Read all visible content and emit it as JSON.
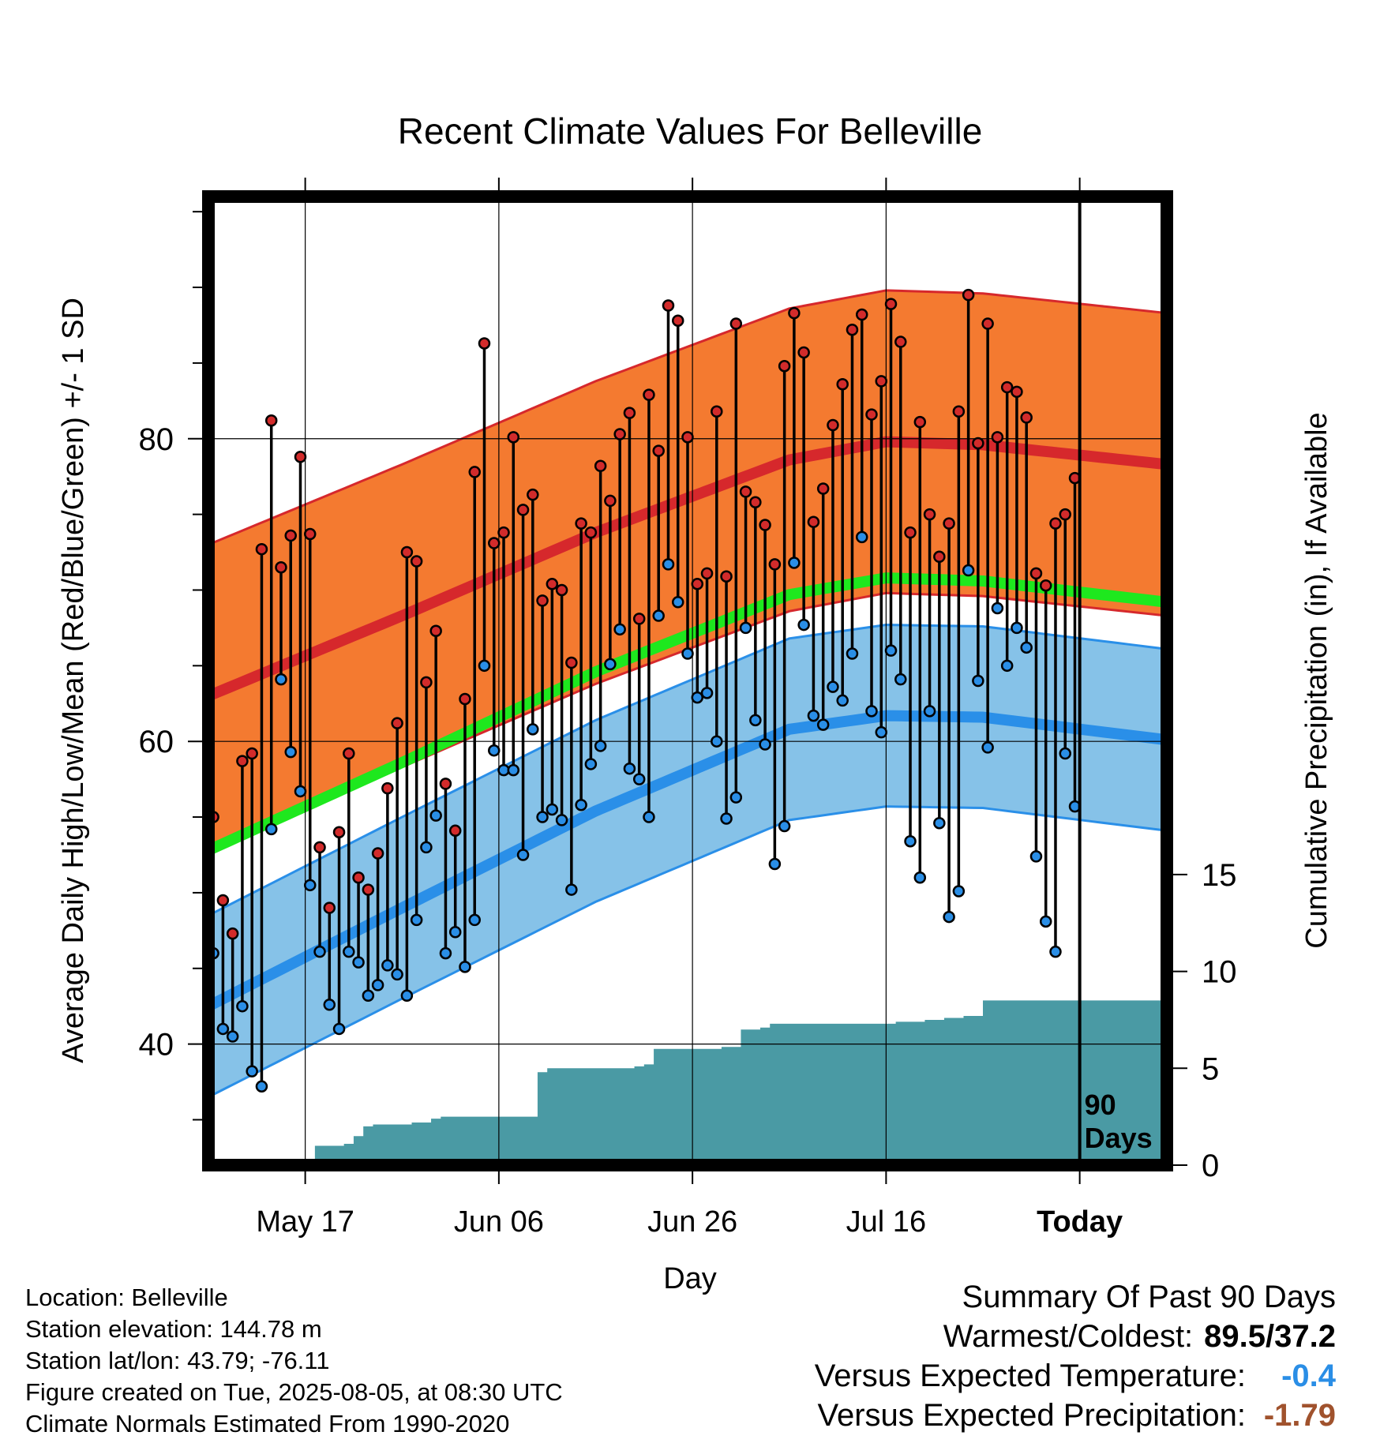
{
  "chart_data": {
    "type": "line",
    "title": "Recent Climate Values For Belleville",
    "xlabel": "Day",
    "ylabel_left": "Average Daily High/Low/Mean (Red/Blue/Green) +/- 1 SD",
    "ylabel_right": "Cumulative Precipitation (in), If Available",
    "x_tick_labels": [
      "May 17",
      "Jun 06",
      "Jun 26",
      "Jul 16",
      "Today"
    ],
    "x_tick_days": [
      10,
      30,
      50,
      70,
      90
    ],
    "x_range_days": [
      0,
      99
    ],
    "y_left_ticks": [
      40,
      60,
      80
    ],
    "y_left_range": [
      32,
      96
    ],
    "y_right_ticks": [
      0,
      5,
      10,
      15
    ],
    "y_right_range": [
      0,
      50
    ],
    "marker_label": "90 Days",
    "grid": true,
    "normals": {
      "high_mean": [
        [
          0,
          63.0
        ],
        [
          20,
          68.3
        ],
        [
          40,
          73.8
        ],
        [
          60,
          78.6
        ],
        [
          70,
          79.8
        ],
        [
          80,
          79.6
        ],
        [
          99,
          78.3
        ]
      ],
      "high_sd": 10,
      "low_mean": [
        [
          0,
          42.5
        ],
        [
          20,
          49.0
        ],
        [
          40,
          55.4
        ],
        [
          60,
          60.8
        ],
        [
          70,
          61.7
        ],
        [
          80,
          61.6
        ],
        [
          99,
          60.1
        ]
      ],
      "low_sd": 6,
      "avg_mean": [
        [
          0,
          52.8
        ],
        [
          20,
          58.6
        ],
        [
          40,
          64.6
        ],
        [
          60,
          69.7
        ],
        [
          70,
          70.8
        ],
        [
          80,
          70.6
        ],
        [
          99,
          69.2
        ]
      ]
    },
    "daily_obs": {
      "high": [
        55.0,
        49.5,
        47.3,
        58.7,
        59.2,
        72.7,
        81.2,
        71.5,
        73.6,
        78.8,
        73.7,
        53.0,
        49.0,
        54.0,
        59.2,
        51.0,
        50.2,
        52.6,
        56.9,
        61.2,
        72.5,
        71.9,
        63.9,
        67.3,
        57.2,
        54.1,
        62.8,
        77.8,
        86.3,
        73.1,
        73.8,
        80.1,
        75.3,
        76.3,
        69.3,
        70.4,
        70.0,
        65.2,
        74.4,
        73.8,
        78.2,
        75.9,
        80.3,
        81.7,
        68.1,
        82.9,
        79.2,
        88.8,
        87.8,
        80.1,
        70.4,
        71.1,
        81.8,
        70.9,
        87.6,
        76.5,
        75.8,
        74.3,
        71.7,
        84.8,
        88.3,
        85.7,
        74.5,
        76.7,
        80.9,
        83.6,
        87.2,
        88.2,
        81.6,
        83.8,
        88.9,
        86.4,
        73.8,
        81.1,
        75.0,
        72.2,
        74.4,
        81.8,
        89.5,
        79.7,
        87.6,
        80.1,
        83.4,
        83.1,
        81.4,
        71.1,
        70.3,
        74.4,
        75.0,
        77.4
      ],
      "low": [
        46.0,
        41.0,
        40.5,
        42.5,
        38.2,
        37.2,
        54.2,
        64.1,
        59.3,
        56.7,
        50.5,
        46.1,
        42.6,
        41.0,
        46.1,
        45.4,
        43.2,
        43.9,
        45.2,
        44.6,
        43.2,
        48.2,
        53.0,
        55.1,
        46.0,
        47.4,
        45.1,
        48.2,
        65.0,
        59.4,
        58.1,
        58.1,
        52.5,
        60.8,
        55.0,
        55.5,
        54.8,
        50.2,
        55.8,
        58.5,
        59.7,
        65.1,
        67.4,
        58.2,
        57.5,
        55.0,
        68.3,
        71.7,
        69.2,
        65.8,
        62.9,
        63.2,
        60.0,
        54.9,
        56.3,
        67.5,
        61.4,
        59.8,
        51.9,
        54.4,
        71.8,
        67.7,
        61.7,
        61.1,
        63.6,
        62.7,
        65.8,
        73.5,
        62.0,
        60.6,
        66.0,
        64.1,
        53.4,
        51.0,
        62.0,
        54.6,
        48.4,
        50.1,
        71.3,
        64.0,
        59.6,
        68.8,
        65.0,
        67.5,
        66.2,
        52.4,
        48.1,
        46.1,
        59.2,
        55.7
      ]
    },
    "cumulative_precip": [
      0.1,
      0.1,
      0.1,
      0.3,
      0.3,
      0.3,
      0.3,
      0.3,
      0.3,
      0.3,
      0.3,
      1.0,
      1.0,
      1.0,
      1.1,
      1.5,
      2.0,
      2.1,
      2.1,
      2.1,
      2.1,
      2.2,
      2.2,
      2.4,
      2.5,
      2.5,
      2.5,
      2.5,
      2.5,
      2.5,
      2.5,
      2.5,
      2.5,
      2.5,
      4.8,
      5.0,
      5.0,
      5.0,
      5.0,
      5.0,
      5.0,
      5.0,
      5.0,
      5.0,
      5.1,
      5.2,
      6.0,
      6.0,
      6.0,
      6.0,
      6.0,
      6.0,
      6.0,
      6.1,
      6.1,
      7.0,
      7.0,
      7.1,
      7.3,
      7.3,
      7.3,
      7.3,
      7.3,
      7.3,
      7.3,
      7.3,
      7.3,
      7.3,
      7.3,
      7.3,
      7.3,
      7.4,
      7.4,
      7.4,
      7.5,
      7.5,
      7.6,
      7.6,
      7.7,
      7.7,
      8.5,
      8.5,
      8.5,
      8.5,
      8.5,
      8.5,
      8.5,
      8.5,
      8.5,
      8.5,
      8.5,
      8.5,
      8.5,
      8.5,
      8.5,
      8.5,
      8.5,
      8.5,
      8.5
    ]
  },
  "metadata": {
    "location": "Location: Belleville",
    "elevation": "Station elevation: 144.78 m",
    "latlon": "Station lat/lon: 43.79; -76.11",
    "created": "Figure created on Tue, 2025-08-05, at 08:30 UTC",
    "normals": "Climate Normals Estimated From 1990-2020"
  },
  "summary": {
    "title": "Summary Of Past 90 Days",
    "warmest_coldest_label": "Warmest/Coldest:",
    "warmest_coldest_value": "89.5/37.2",
    "temp_label": "Versus Expected Temperature:",
    "temp_value": "-0.4",
    "precip_label": "Versus Expected Precipitation:",
    "precip_value": "-1.79"
  },
  "colors": {
    "high_band": "#f47a30",
    "high_line": "#d6282c",
    "low_band": "#86c2e8",
    "low_line": "#2a8fe8",
    "avg_line": "#1ee81e",
    "precip_fill": "#4a9aa4",
    "high_dot": "#d22b2b",
    "low_dot": "#2a8ee6",
    "temp_value": "#2a8ee6",
    "precip_value": "#a0522d"
  }
}
